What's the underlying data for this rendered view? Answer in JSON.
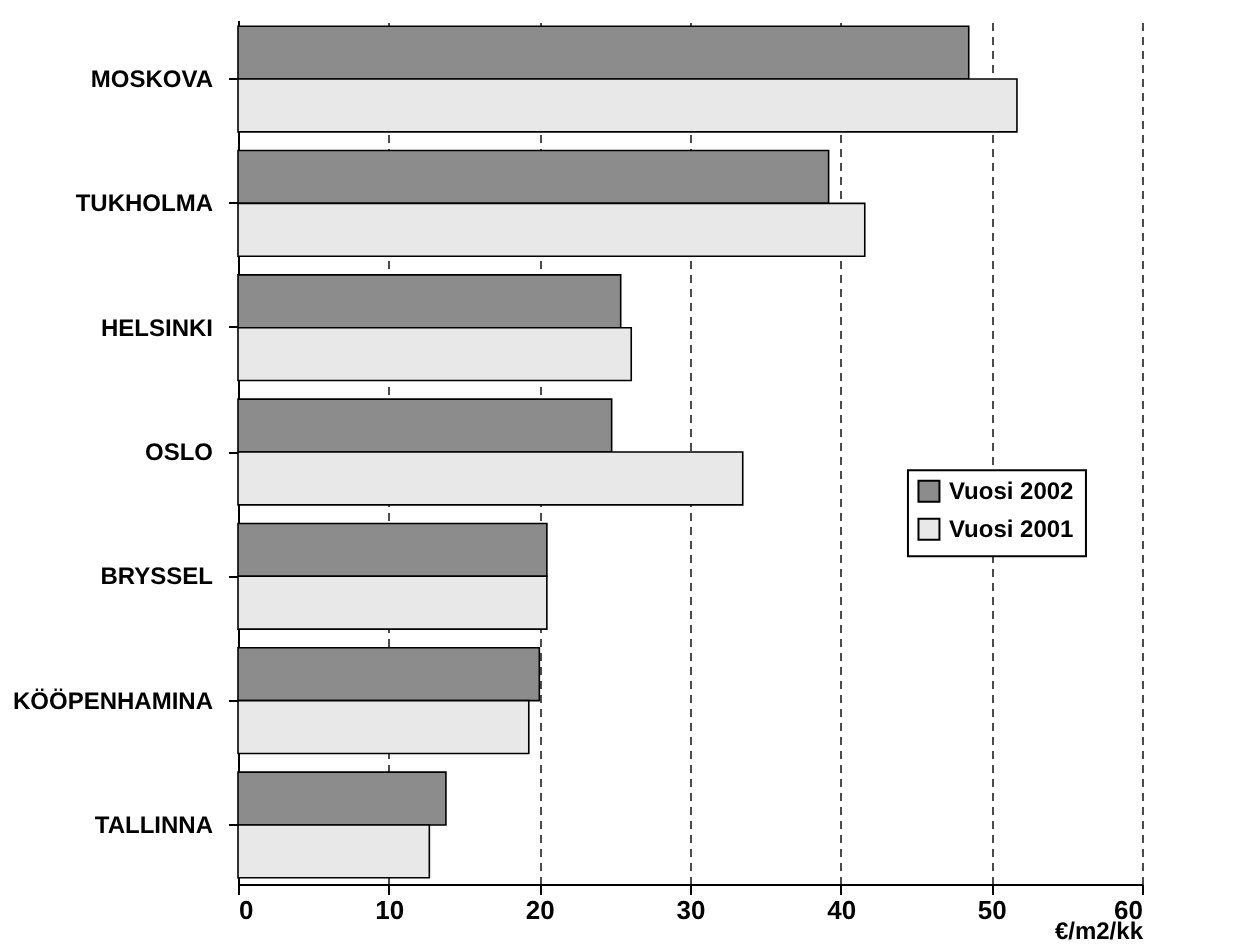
{
  "chart_data": {
    "type": "bar",
    "orientation": "horizontal",
    "xlabel": "€/m2/kk",
    "categories": [
      "MOSKOVA",
      "TUKHOLMA",
      "HELSINKI",
      "OSLO",
      "BRYSSEL",
      "KÖÖPENHAMINA",
      "TALLINNA"
    ],
    "series": [
      {
        "name": "Vuosi 2002",
        "color": "#8c8c8c",
        "values": [
          48.5,
          39.2,
          25.4,
          24.8,
          20.5,
          20,
          13.8
        ]
      },
      {
        "name": "Vuosi 2001",
        "color": "#e8e8e8",
        "values": [
          51.7,
          41.6,
          26.1,
          33.5,
          20.5,
          19.3,
          12.7
        ]
      }
    ],
    "xlim": [
      0,
      60
    ],
    "xticks": [
      0,
      10,
      20,
      30,
      40,
      50,
      60
    ],
    "grid": "x",
    "legend": "right"
  }
}
